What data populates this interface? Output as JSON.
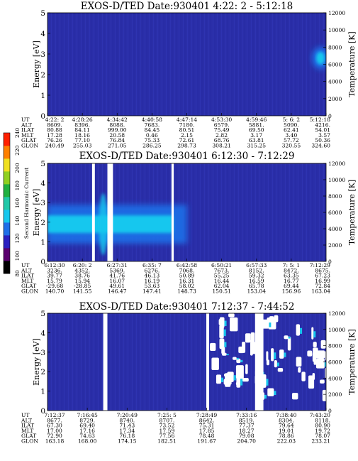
{
  "colors": {
    "background": "#2a2ea8",
    "beam": "#17c7ee",
    "ring": "#1e6fe8",
    "white": "#ffffff",
    "colorbar": [
      "#000000",
      "#5a006e",
      "#2a20c0",
      "#1f6fe8",
      "#17c7ee",
      "#20c8a8",
      "#20b040",
      "#90d020",
      "#f0e020",
      "#ff8000",
      "#ff2000"
    ]
  },
  "colorbar": {
    "label": "Second Harmonic Current",
    "ticks": [
      "80",
      "100",
      "120",
      "140",
      "160",
      "180",
      "200",
      "220",
      "240"
    ]
  },
  "chart_data": [
    {
      "type": "heatmap",
      "title": "EXOS-D/TED   Date:930401   4:22: 2 - 5:12:18",
      "ylabel": "Energy [eV]",
      "y2label": "Temperature [K]",
      "ylim": [
        0,
        5
      ],
      "y2lim": [
        0,
        12000
      ],
      "yticks": [
        "0",
        "1",
        "2",
        "3",
        "4",
        "5"
      ],
      "y2ticks": [
        "0",
        "2000",
        "4000",
        "6000",
        "8000",
        "10000",
        "12000"
      ],
      "features": [
        {
          "kind": "warm_spot",
          "t_frac": 0.98,
          "energy_center": 2.8,
          "energy_halfwidth": 0.3
        }
      ],
      "ephemeris": {
        "labels": [
          "UT",
          "ALT",
          "ILAT",
          "MLT",
          "GLAT",
          "GLON"
        ],
        "columns": [
          [
            "4:22: 2",
            "8609.",
            "80.88",
            "17.28",
            "76.26",
            "240.49"
          ],
          [
            "4:28:26",
            "8396.",
            "84.11",
            "18.16",
            "77.10",
            "255.03"
          ],
          [
            "4:34:42",
            "8088.",
            "999.00",
            "20.58",
            "76.84",
            "271.05"
          ],
          [
            "4:40:58",
            "7683.",
            "84.45",
            "0.46",
            "75.33",
            "286.25"
          ],
          [
            "4:47:14",
            "7180.",
            "80.51",
            "2.15",
            "72.61",
            "298.73"
          ],
          [
            "4:53:30",
            "6579.",
            "75.49",
            "2.82",
            "68.76",
            "308.21"
          ],
          [
            "4:59:46",
            "5881.",
            "69.50",
            "3.17",
            "63.81",
            "315.25"
          ],
          [
            "5: 6: 2",
            "5090.",
            "62.41",
            "3.40",
            "57.72",
            "320.55"
          ],
          [
            "5:12:18",
            "4216.",
            "54.01",
            "3.57",
            "50.36",
            "324.60"
          ]
        ]
      }
    },
    {
      "type": "heatmap",
      "title": "EXOS-D/TED   Date:930401   6:12:30 - 7:12:29",
      "ylabel": "Energy [eV]",
      "y2label": "Temperature [K]",
      "ylim": [
        0,
        5
      ],
      "y2lim": [
        0,
        12000
      ],
      "yticks": [
        "0",
        "1",
        "2",
        "3",
        "4",
        "5"
      ],
      "y2ticks": [
        "0",
        "2000",
        "4000",
        "6000",
        "8000",
        "10000",
        "12000"
      ],
      "features": [
        {
          "kind": "beam",
          "t_start_frac": 0.0,
          "t_end_frac": 0.45,
          "energy_center": 1.9,
          "energy_halfwidth": 0.45
        },
        {
          "kind": "data_gap",
          "t_start_frac": 0.16,
          "t_end_frac": 0.17
        },
        {
          "kind": "data_gap",
          "t_start_frac": 0.215,
          "t_end_frac": 0.235
        },
        {
          "kind": "data_gap",
          "t_start_frac": 0.445,
          "t_end_frac": 0.453
        }
      ],
      "ephemeris": {
        "labels": [
          "UT",
          "ALT",
          "ILAT",
          "MLT",
          "GLAT",
          "GLON"
        ],
        "columns": [
          [
            "6:12:30",
            "3236.",
            "39.77",
            "15.79",
            "-29.68",
            "140.70"
          ],
          [
            "6:20: 2",
            "4352.",
            "38.76",
            "15.94",
            "-28.85",
            "141.55"
          ],
          [
            "6:27:31",
            "5369.",
            "41.76",
            "16.07",
            "49.61",
            "146.47"
          ],
          [
            "6:35: 7",
            "6276.",
            "46.13",
            "16.19",
            "53.63",
            "147.41"
          ],
          [
            "6:42:58",
            "7068.",
            "50.89",
            "16.31",
            "58.02",
            "148.73"
          ],
          [
            "6:50:21",
            "7673.",
            "55.25",
            "16.44",
            "62.04",
            "150.51"
          ],
          [
            "6:57:33",
            "8152.",
            "59.32",
            "16.59",
            "65.78",
            "153.04"
          ],
          [
            "7: 5: 1",
            "8472.",
            "63.35",
            "16.77",
            "69.44",
            "156.96"
          ],
          [
            "7:12:29",
            "8675.",
            "67.23",
            "16.99",
            "72.84",
            "163.04"
          ]
        ]
      }
    },
    {
      "type": "heatmap",
      "title": "EXOS-D/TED   Date:930401   7:12:37 - 7:44:52",
      "ylabel": "Energy [eV]",
      "y2label": "Temperature [K]",
      "ylim": [
        0,
        5
      ],
      "y2lim": [
        0,
        12000
      ],
      "yticks": [
        "0",
        "1",
        "2",
        "3",
        "4",
        "5"
      ],
      "y2ticks": [
        "0",
        "2000",
        "4000",
        "6000",
        "8000",
        "10000",
        "12000"
      ],
      "features": [
        {
          "kind": "data_gap",
          "t_start_frac": 0.2,
          "t_end_frac": 0.215
        },
        {
          "kind": "data_gap",
          "t_start_frac": 0.57,
          "t_end_frac": 0.58
        },
        {
          "kind": "data_gap",
          "t_start_frac": 0.745,
          "t_end_frac": 0.775
        },
        {
          "kind": "patchy",
          "t_start_frac": 0.58,
          "t_end_frac": 1.0
        }
      ],
      "ephemeris": {
        "labels": [
          "UT",
          "ALT",
          "ILAT",
          "MLT",
          "GLAT",
          "GLON"
        ],
        "columns": [
          [
            "7:12:37",
            "8677.",
            "67.30",
            "17.00",
            "72.90",
            "163.18"
          ],
          [
            "7:16:45",
            "8729.",
            "69.40",
            "17.16",
            "74.63",
            "168.00"
          ],
          [
            "7:20:49",
            "8740.",
            "71.43",
            "17.34",
            "76.18",
            "174.15"
          ],
          [
            "7:25: 5",
            "8707.",
            "73.52",
            "17.59",
            "77.56",
            "182.51"
          ],
          [
            "7:28:49",
            "8642.",
            "75.31",
            "17.85",
            "78.48",
            "191.67"
          ],
          [
            "7:33:16",
            "8519.",
            "77.37",
            "18.27",
            "79.08",
            "204.70"
          ],
          [
            "7:38:40",
            "8304.",
            "79.64",
            "19.01",
            "78.86",
            "222.03"
          ],
          [
            "7:43:20",
            "8118.",
            "80.90",
            "19.72",
            "78.07",
            "233.21"
          ]
        ]
      }
    }
  ]
}
